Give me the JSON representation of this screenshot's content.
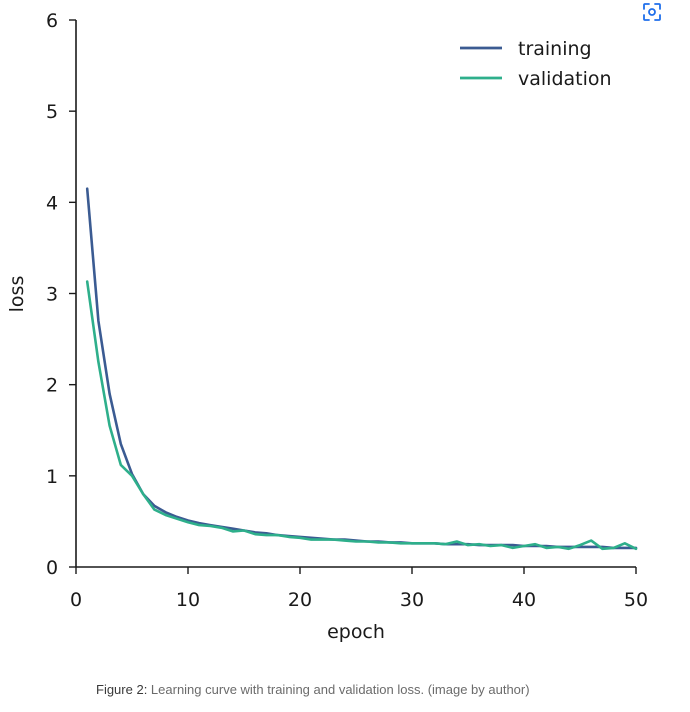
{
  "caption": {
    "label": "Figure 2:",
    "text": " Learning curve with training and validation loss. (image by author)"
  },
  "toolbar": {
    "expand_icon": "expand-icon",
    "accent": "#1f6feb"
  },
  "chart_data": {
    "type": "line",
    "title": "",
    "xlabel": "epoch",
    "ylabel": "loss",
    "xlim": [
      0,
      50
    ],
    "ylim": [
      0,
      6
    ],
    "xticks": [
      0,
      10,
      20,
      30,
      40,
      50
    ],
    "yticks": [
      0,
      1,
      2,
      3,
      4,
      5,
      6
    ],
    "grid": false,
    "legend_position": "top-right",
    "x": [
      1,
      2,
      3,
      4,
      5,
      6,
      7,
      8,
      9,
      10,
      11,
      12,
      13,
      14,
      15,
      16,
      17,
      18,
      19,
      20,
      21,
      22,
      23,
      24,
      25,
      26,
      27,
      28,
      29,
      30,
      31,
      32,
      33,
      34,
      35,
      36,
      37,
      38,
      39,
      40,
      41,
      42,
      43,
      44,
      45,
      46,
      47,
      48,
      49,
      50
    ],
    "series": [
      {
        "name": "training",
        "color": "#3b5b92",
        "values": [
          4.15,
          2.7,
          1.9,
          1.35,
          1.02,
          0.8,
          0.67,
          0.6,
          0.55,
          0.51,
          0.48,
          0.46,
          0.44,
          0.42,
          0.4,
          0.38,
          0.37,
          0.35,
          0.34,
          0.33,
          0.32,
          0.31,
          0.3,
          0.3,
          0.29,
          0.28,
          0.28,
          0.27,
          0.27,
          0.26,
          0.26,
          0.26,
          0.25,
          0.25,
          0.25,
          0.24,
          0.24,
          0.24,
          0.24,
          0.23,
          0.23,
          0.23,
          0.22,
          0.22,
          0.22,
          0.22,
          0.22,
          0.21,
          0.21,
          0.21
        ]
      },
      {
        "name": "validation",
        "color": "#2eaf8b",
        "values": [
          3.13,
          2.25,
          1.55,
          1.12,
          1.0,
          0.8,
          0.63,
          0.57,
          0.53,
          0.49,
          0.46,
          0.45,
          0.43,
          0.39,
          0.4,
          0.36,
          0.35,
          0.35,
          0.33,
          0.32,
          0.3,
          0.3,
          0.3,
          0.29,
          0.28,
          0.28,
          0.27,
          0.27,
          0.26,
          0.26,
          0.26,
          0.26,
          0.25,
          0.28,
          0.24,
          0.25,
          0.23,
          0.24,
          0.21,
          0.23,
          0.25,
          0.21,
          0.22,
          0.2,
          0.24,
          0.29,
          0.2,
          0.21,
          0.26,
          0.2
        ]
      }
    ]
  }
}
